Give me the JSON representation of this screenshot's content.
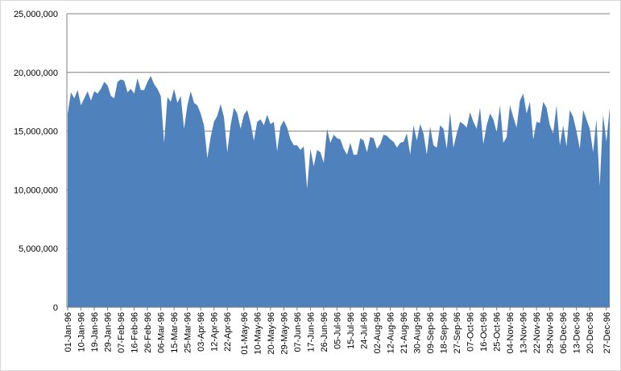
{
  "chart_data": {
    "type": "area",
    "categories": [
      "01-Jan-96",
      null,
      null,
      null,
      "10-Jan-96",
      null,
      null,
      null,
      "19-Jan-96",
      null,
      null,
      null,
      "29-Jan-96",
      null,
      null,
      null,
      "07-Feb-96",
      null,
      null,
      null,
      "16-Feb-96",
      null,
      null,
      null,
      "26-Feb-96",
      null,
      null,
      null,
      "06-Mar-96",
      null,
      null,
      null,
      "15-Mar-96",
      null,
      null,
      null,
      "25-Mar-96",
      null,
      null,
      null,
      "03-Apr-96",
      null,
      null,
      null,
      "12-Apr-96",
      null,
      null,
      null,
      "22-Apr-96",
      null,
      null,
      null,
      null,
      "01-May-96",
      null,
      null,
      null,
      "10-May-96",
      null,
      null,
      null,
      "20-May-96",
      null,
      null,
      null,
      "29-May-96",
      null,
      null,
      null,
      "07-Jun-96",
      null,
      null,
      null,
      "17-Jun-96",
      null,
      null,
      null,
      "26-Jun-96",
      null,
      null,
      null,
      "05-Jul-96",
      null,
      null,
      null,
      "15-Jul-96",
      null,
      null,
      null,
      "24-Jul-96",
      null,
      null,
      null,
      "02-Aug-96",
      null,
      null,
      null,
      "12-Aug-96",
      null,
      null,
      null,
      "21-Aug-96",
      null,
      null,
      null,
      "30-Aug-96",
      null,
      null,
      null,
      "09-Sep-96",
      null,
      null,
      null,
      "18-Sep-96",
      null,
      null,
      null,
      "27-Sep-96",
      null,
      null,
      null,
      "07-Oct-96",
      null,
      null,
      null,
      "16-Oct-96",
      null,
      null,
      null,
      "25-Oct-96",
      null,
      null,
      null,
      "04-Nov-96",
      null,
      null,
      null,
      "13-Nov-96",
      null,
      null,
      null,
      "22-Nov-96",
      null,
      null,
      null,
      "29-Nov-96",
      null,
      null,
      null,
      "06-Dec-96",
      null,
      null,
      null,
      "13-Dec-96",
      null,
      null,
      null,
      "20-Dec-96",
      null,
      null,
      null,
      null,
      "27-Dec-96",
      null
    ],
    "values": [
      16500000,
      18300000,
      17800000,
      18500000,
      17200000,
      17800000,
      18400000,
      17600000,
      18400000,
      18200000,
      18600000,
      19200000,
      18900000,
      18000000,
      17800000,
      19200000,
      19400000,
      19300000,
      18300000,
      18600000,
      18200000,
      19500000,
      18500000,
      18500000,
      19200000,
      19700000,
      19000000,
      18600000,
      18000000,
      14000000,
      17900000,
      17500000,
      18600000,
      17400000,
      18000000,
      15200000,
      17200000,
      18400000,
      17400000,
      17200000,
      16500000,
      15500000,
      12700000,
      14500000,
      15800000,
      16300000,
      17300000,
      16200000,
      13200000,
      15500000,
      17000000,
      16500000,
      15200000,
      16400000,
      16800000,
      15700000,
      14200000,
      15800000,
      16000000,
      15500000,
      16400000,
      15600000,
      15800000,
      13300000,
      15400000,
      15900000,
      15300000,
      14300000,
      13800000,
      13800000,
      13400000,
      13700000,
      10100000,
      13500000,
      12000000,
      13400000,
      13200000,
      12300000,
      15200000,
      14000000,
      14700000,
      14400000,
      14300000,
      13500000,
      13000000,
      14000000,
      13000000,
      13000000,
      14400000,
      14200000,
      13200000,
      14500000,
      14400000,
      13500000,
      13900000,
      14700000,
      14600000,
      14300000,
      14100000,
      13600000,
      14000000,
      14100000,
      14800000,
      13000000,
      15500000,
      14200000,
      15600000,
      14800000,
      13000000,
      15400000,
      13800000,
      13600000,
      15500000,
      15200000,
      13500000,
      16600000,
      13600000,
      14800000,
      15800000,
      15600000,
      15300000,
      16600000,
      15800000,
      15200000,
      17000000,
      13900000,
      15500000,
      16500000,
      16000000,
      14900000,
      17200000,
      14000000,
      14500000,
      17200000,
      16200000,
      15300000,
      17600000,
      18200000,
      16500000,
      17500000,
      14300000,
      15800000,
      15700000,
      17500000,
      17000000,
      15500000,
      14800000,
      17200000,
      13800000,
      15500000,
      13700000,
      16800000,
      16200000,
      15000000,
      13500000,
      16800000,
      16000000,
      15200000,
      13200000,
      16000000,
      10300000,
      16400000,
      14100000,
      17000000
    ],
    "color": "#4f81bd",
    "ylim": [
      0,
      25000000
    ],
    "yticks": [
      0,
      {
        "value": 5000000,
        "label": "5,000,000"
      },
      {
        "value": 10000000,
        "label": "10,000,000"
      },
      {
        "value": 15000000,
        "label": "15,000,000"
      },
      {
        "value": 20000000,
        "label": "20,000,000"
      },
      {
        "value": 25000000,
        "label": "25,000,000"
      }
    ],
    "grid": true
  }
}
